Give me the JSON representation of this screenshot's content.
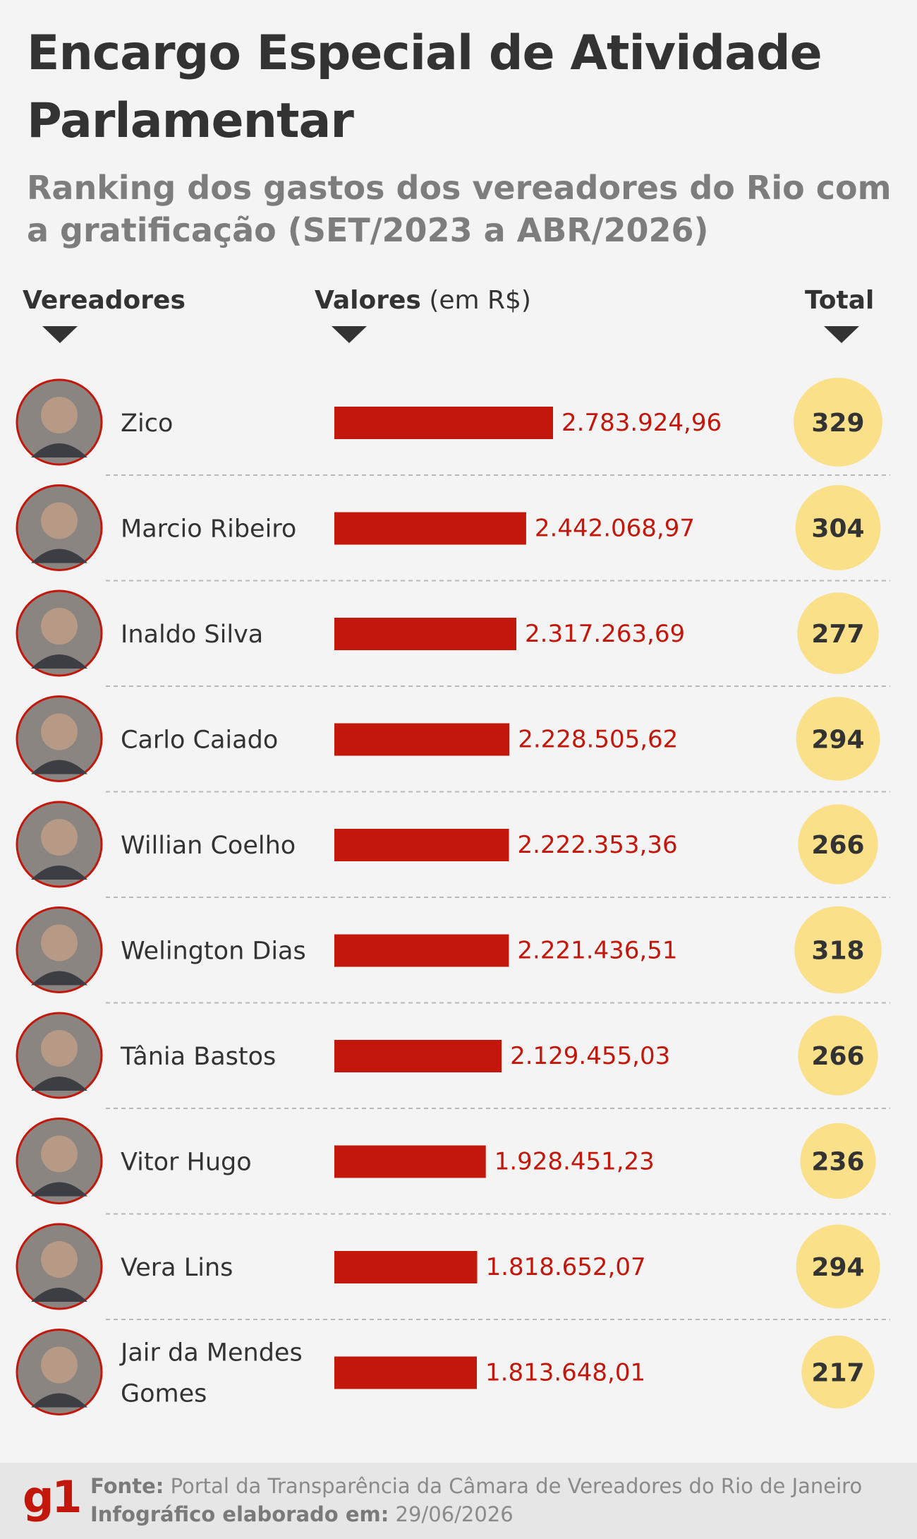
{
  "header": {
    "title": "Encargo Especial de Atividade Parlamentar",
    "subtitle": "Ranking dos gastos dos vereadores do Rio com a gratificação (SET/2023 a ABR/2026)"
  },
  "columns": {
    "vereadores": "Vereadores",
    "valores": "Valores",
    "valores_unit": "(em R$)",
    "total": "Total"
  },
  "chart_data": {
    "type": "bar",
    "orientation": "horizontal",
    "categories": [
      "Zico",
      "Marcio Ribeiro",
      "Inaldo Silva",
      "Carlo Caiado",
      "Willian Coelho",
      "Welington Dias",
      "Tânia Bastos",
      "Vitor Hugo",
      "Vera Lins",
      "Jair da Mendes Gomes"
    ],
    "values": [
      2783924.96,
      2442068.97,
      2317263.69,
      2228505.62,
      2222353.36,
      2221436.51,
      2129455.03,
      1928451.23,
      1818652.07,
      1813648.01
    ],
    "value_labels": [
      "2.783.924,96",
      "2.442.068,97",
      "2.317.263,69",
      "2.228.505,62",
      "2.222.353,36",
      "2.221.436,51",
      "2.129.455,03",
      "1.928.451,23",
      "1.818.652,07",
      "1.813.648,01"
    ],
    "totals": [
      329,
      304,
      277,
      294,
      266,
      318,
      266,
      236,
      294,
      217
    ],
    "xlim": [
      0,
      2783924.96
    ],
    "colors": {
      "bar": "#c4170c",
      "bar_label": "#c4170c",
      "total_circle": "#fbe08a",
      "avatar_ring": "#c4170c"
    }
  },
  "footer": {
    "logo": "g1",
    "source_label": "Fonte:",
    "source_text": "Portal da Transparência da Câmara de Vereadores do Rio de Janeiro",
    "date_label": "Infográfico elaborado em:",
    "date_text": "29/06/2026"
  }
}
